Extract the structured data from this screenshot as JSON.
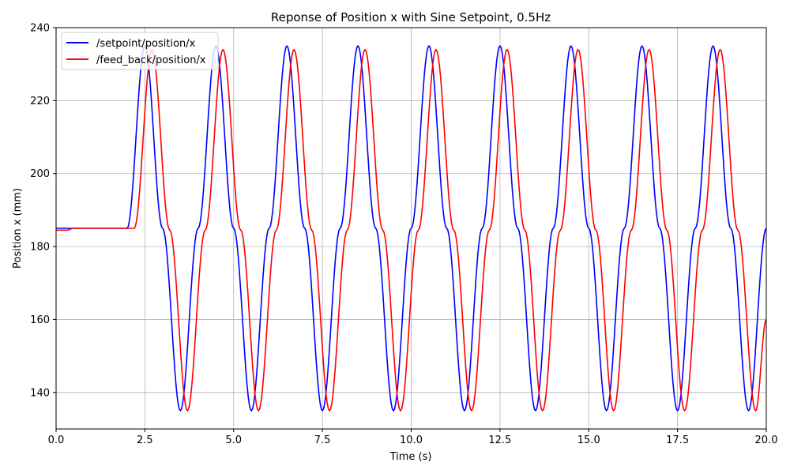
{
  "chart_data": {
    "type": "line",
    "title": "Reponse of Position x with Sine Setpoint, 0.5Hz",
    "xlabel": "Time (s)",
    "ylabel": "Position x (mm)",
    "xlim": [
      0,
      20
    ],
    "ylim": [
      130,
      240
    ],
    "xticks": [
      "0.0",
      "2.5",
      "5.0",
      "7.5",
      "10.0",
      "12.5",
      "15.0",
      "17.5",
      "20.0"
    ],
    "xtick_values": [
      0,
      2.5,
      5,
      7.5,
      10,
      12.5,
      15,
      17.5,
      20
    ],
    "yticks": [
      "140",
      "160",
      "180",
      "200",
      "220",
      "240"
    ],
    "ytick_values": [
      140,
      160,
      180,
      200,
      220,
      240
    ],
    "grid": true,
    "legend_position": "top-left",
    "series": [
      {
        "name": "/setpoint/position/x",
        "color": "#0000ff",
        "x": [
          0.0,
          2.0,
          2.5,
          3.0,
          3.5,
          4.0,
          4.5,
          5.0,
          5.5,
          6.0,
          6.5,
          7.0,
          7.5,
          8.0,
          8.5,
          9.0,
          9.5,
          10.0,
          10.5,
          11.0,
          11.5,
          12.0,
          12.5,
          13.0,
          13.5,
          14.0,
          14.5,
          15.0,
          15.5,
          16.0,
          16.5,
          17.0,
          17.5,
          18.0,
          18.5,
          19.0,
          19.5,
          20.0
        ],
        "y": [
          185,
          185,
          235,
          185,
          135,
          185,
          235,
          185,
          135,
          185,
          235,
          185,
          135,
          185,
          235,
          185,
          135,
          185,
          235,
          185,
          135,
          185,
          235,
          185,
          135,
          185,
          235,
          185,
          135,
          185,
          235,
          185,
          135,
          185,
          235,
          185,
          135,
          185
        ]
      },
      {
        "name": "/feed_back/position/x",
        "color": "#ff0000",
        "x": [
          0.0,
          0.3,
          0.5,
          2.1,
          2.2,
          2.7,
          3.2,
          3.7,
          4.2,
          4.7,
          5.2,
          5.7,
          6.2,
          6.7,
          7.2,
          7.7,
          8.2,
          8.7,
          9.2,
          9.7,
          10.2,
          10.7,
          11.2,
          11.7,
          12.2,
          12.7,
          13.2,
          13.7,
          14.2,
          14.7,
          15.2,
          15.7,
          16.2,
          16.7,
          17.2,
          17.7,
          18.2,
          18.7,
          19.2,
          19.7,
          20.0
        ],
        "y": [
          184.5,
          184.5,
          185,
          185,
          185,
          234,
          184.5,
          135,
          184.5,
          234,
          184.5,
          135,
          184.5,
          234,
          184.5,
          135,
          184.5,
          234,
          184.5,
          135,
          184.5,
          234,
          184.5,
          135,
          184.5,
          234,
          184.5,
          135,
          184.5,
          234,
          184.5,
          135,
          184.5,
          234,
          184.5,
          135,
          184.5,
          234,
          184.5,
          135,
          160
        ]
      }
    ]
  }
}
